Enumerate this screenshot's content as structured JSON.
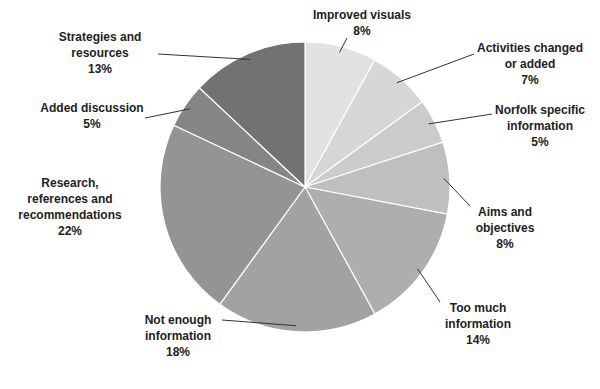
{
  "chart_data": {
    "type": "pie",
    "categories": [
      "Improved visuals",
      "Activities changed or added",
      "Norfolk specific information",
      "Aims and objectives",
      "Too much information",
      "Not enough information",
      "Research, references and recommendations",
      "Added discussion",
      "Strategies and resources"
    ],
    "values": [
      8,
      7,
      5,
      8,
      14,
      18,
      22,
      5,
      13
    ],
    "value_labels": [
      "8%",
      "7%",
      "5%",
      "8%",
      "14%",
      "18%",
      "22%",
      "5%",
      "13%"
    ],
    "colors": [
      "#e2e2e2",
      "#d6d6d6",
      "#cbcbcb",
      "#bfbfbf",
      "#aeaeae",
      "#a2a2a2",
      "#949494",
      "#858585",
      "#727272"
    ],
    "data_labels": true
  }
}
